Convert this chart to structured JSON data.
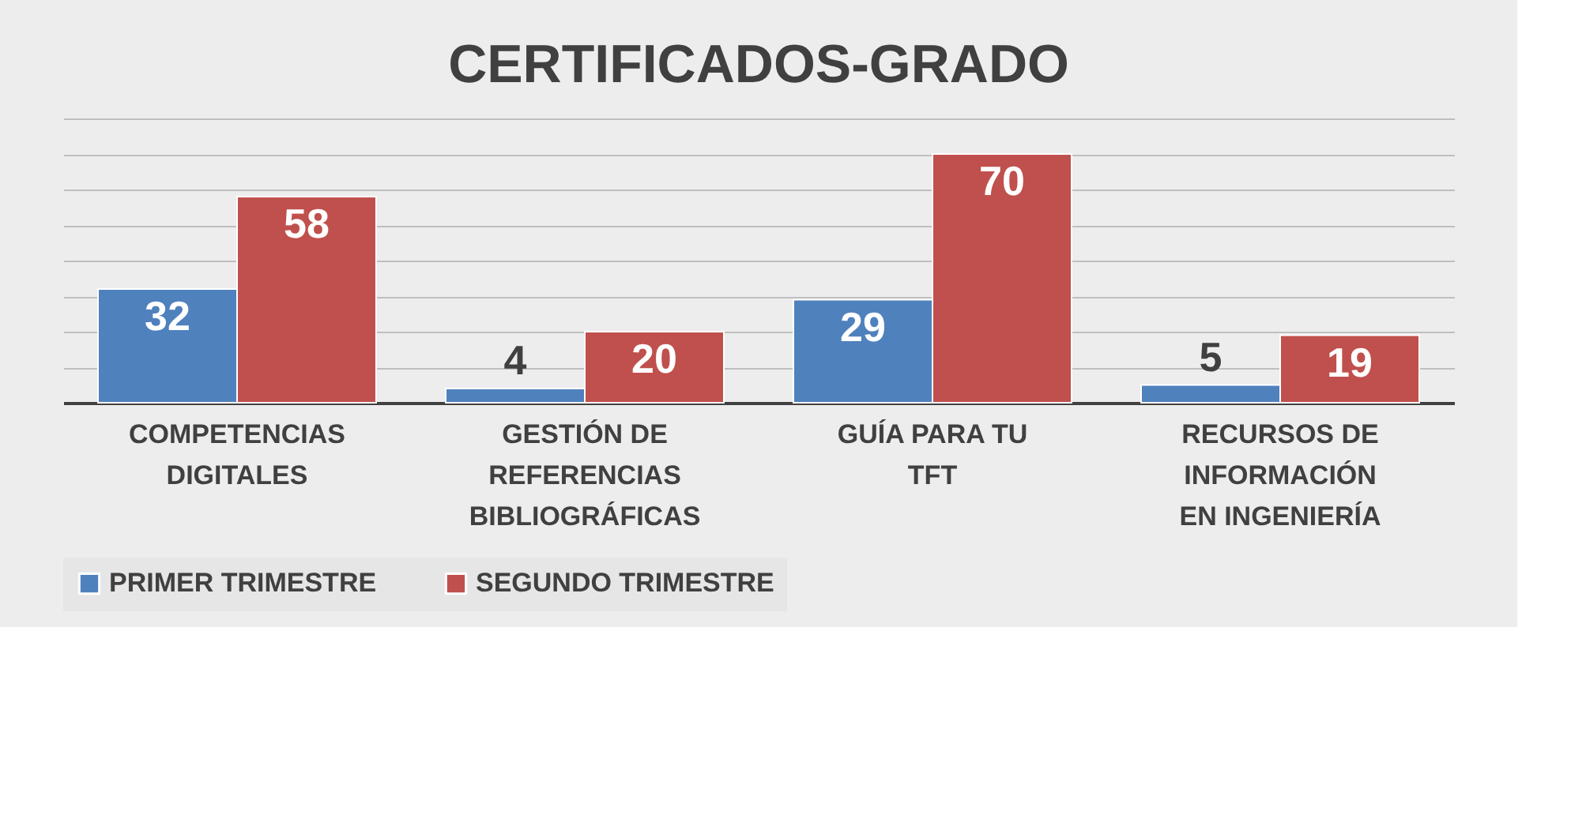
{
  "chart_data": {
    "type": "bar",
    "title": "CERTIFICADOS-GRADO",
    "categories": [
      "COMPETENCIAS\nDIGITALES",
      "GESTIÓN DE\nREFERENCIAS\nBIBLIOGRÁFICAS",
      "GUÍA PARA TU\nTFT",
      "RECURSOS DE\nINFORMACIÓN\nEN INGENIERÍA"
    ],
    "series": [
      {
        "name": "PRIMER TRIMESTRE",
        "color": "#4f81bd",
        "values": [
          32,
          4,
          29,
          5
        ]
      },
      {
        "name": "SEGUNDO TRIMESTRE",
        "color": "#c0504d",
        "values": [
          58,
          20,
          70,
          19
        ]
      }
    ],
    "ylim": [
      0,
      80
    ],
    "tick_labels": "x",
    "grid": "y",
    "legend": "bottom",
    "data_labels": true
  }
}
